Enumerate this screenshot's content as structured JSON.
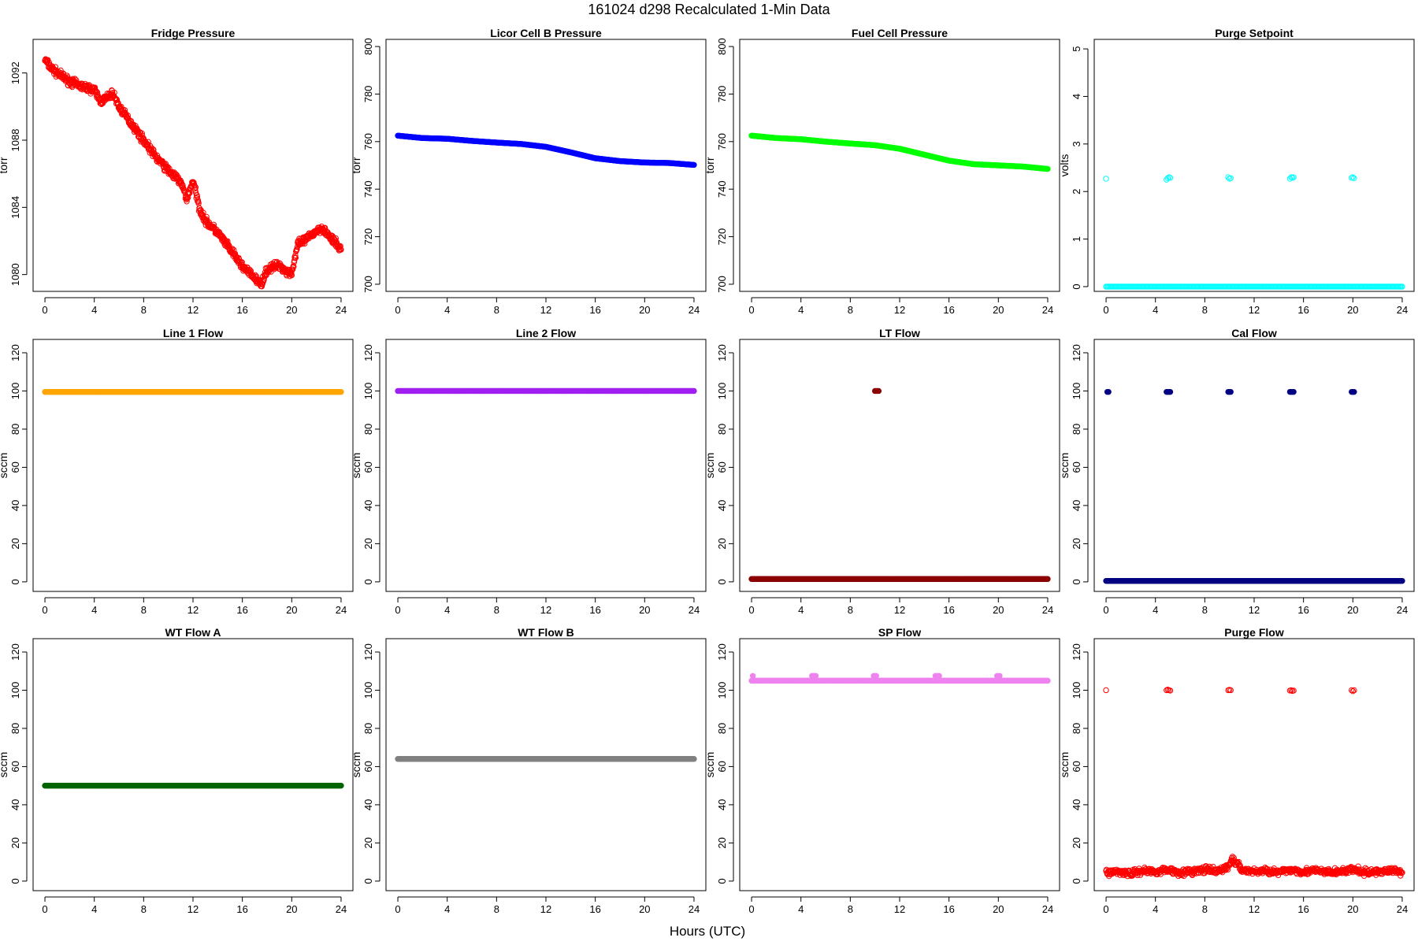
{
  "figure": {
    "title": "161024   d298   Recalculated 1-Min Data",
    "xlabel": "Hours (UTC)"
  },
  "chart_data": [
    {
      "type": "scatter",
      "title": "Fridge Pressure",
      "ylabel": "torr",
      "color": "#ff0000",
      "marker": "open",
      "xlim": [
        0,
        24
      ],
      "ylim": [
        1079,
        1094
      ],
      "xticks": [
        0,
        4,
        8,
        12,
        16,
        20,
        24
      ],
      "yticks": [
        1080,
        1084,
        1088,
        1092
      ],
      "series": [
        {
          "x": [
            0,
            0.5,
            1,
            2,
            3,
            4,
            4.5,
            5,
            5.5,
            6,
            7,
            8,
            9,
            10,
            11,
            11.5,
            12,
            12.5,
            13,
            14,
            15,
            16,
            17,
            17.5,
            18,
            19,
            19.5,
            20,
            20.5,
            21,
            22,
            22.5,
            23,
            24
          ],
          "y": [
            1092.8,
            1092.3,
            1092.0,
            1091.5,
            1091.2,
            1091.0,
            1090.3,
            1090.5,
            1090.8,
            1090.0,
            1089.0,
            1088.0,
            1087.0,
            1086.2,
            1085.5,
            1084.5,
            1085.6,
            1084.0,
            1083.2,
            1082.5,
            1081.5,
            1080.5,
            1079.8,
            1079.4,
            1080.3,
            1080.6,
            1080.2,
            1080.1,
            1081.8,
            1082.0,
            1082.6,
            1082.8,
            1082.3,
            1081.5
          ]
        }
      ]
    },
    {
      "type": "scatter",
      "title": "Licor Cell B Pressure",
      "ylabel": "torr",
      "color": "#0000ff",
      "marker": "filled",
      "xlim": [
        0,
        24
      ],
      "ylim": [
        697,
        803
      ],
      "xticks": [
        0,
        4,
        8,
        12,
        16,
        20,
        24
      ],
      "yticks": [
        700,
        720,
        740,
        760,
        780,
        800
      ],
      "series": [
        {
          "x": [
            0,
            2,
            4,
            6,
            8,
            10,
            12,
            14,
            16,
            18,
            20,
            22,
            24
          ],
          "y": [
            762.5,
            761.5,
            761.2,
            760.3,
            759.6,
            759.0,
            757.8,
            755.5,
            753.0,
            751.8,
            751.2,
            751.0,
            750.2
          ]
        }
      ]
    },
    {
      "type": "scatter",
      "title": "Fuel Cell Pressure",
      "ylabel": "torr",
      "color": "#00ff00",
      "marker": "filled",
      "xlim": [
        0,
        24
      ],
      "ylim": [
        697,
        803
      ],
      "xticks": [
        0,
        4,
        8,
        12,
        16,
        20,
        24
      ],
      "yticks": [
        700,
        720,
        740,
        760,
        780,
        800
      ],
      "series": [
        {
          "x": [
            0,
            2,
            4,
            6,
            8,
            10,
            12,
            14,
            16,
            18,
            20,
            22,
            24
          ],
          "y": [
            762.5,
            761.5,
            761.0,
            760.0,
            759.2,
            758.5,
            757.0,
            754.5,
            752.0,
            750.5,
            750.0,
            749.5,
            748.5
          ]
        }
      ]
    },
    {
      "type": "scatter",
      "title": "Purge Setpoint",
      "ylabel": "volts",
      "color": "#00ffff",
      "marker": "open",
      "xlim": [
        0,
        24
      ],
      "ylim": [
        -0.1,
        5.2
      ],
      "xticks": [
        0,
        4,
        8,
        12,
        16,
        20,
        24
      ],
      "yticks": [
        0,
        1,
        2,
        3,
        4,
        5
      ],
      "series": [
        {
          "x": [
            0,
            24
          ],
          "y": [
            0,
            0
          ],
          "kind": "band"
        },
        {
          "x": [
            0,
            4.9,
            5.0,
            5.1,
            5.2,
            9.9,
            10.0,
            10.1,
            14.9,
            15.0,
            15.1,
            15.2,
            19.9,
            20.0,
            20.1
          ],
          "y": [
            2.27,
            2.25,
            2.28,
            2.3,
            2.29,
            2.3,
            2.27,
            2.28,
            2.27,
            2.3,
            2.29,
            2.3,
            2.29,
            2.3,
            2.28
          ]
        }
      ]
    },
    {
      "type": "scatter",
      "title": "Line 1 Flow",
      "ylabel": "sccm",
      "color": "#ffa500",
      "marker": "filled",
      "xlim": [
        0,
        24
      ],
      "ylim": [
        -5,
        127
      ],
      "xticks": [
        0,
        4,
        8,
        12,
        16,
        20,
        24
      ],
      "yticks": [
        0,
        20,
        40,
        60,
        80,
        100,
        120
      ],
      "series": [
        {
          "x": [
            0,
            24
          ],
          "y": [
            99.5,
            99.5
          ],
          "kind": "band"
        }
      ]
    },
    {
      "type": "scatter",
      "title": "Line 2 Flow",
      "ylabel": "sccm",
      "color": "#a020f0",
      "marker": "filled",
      "xlim": [
        0,
        24
      ],
      "ylim": [
        -5,
        127
      ],
      "xticks": [
        0,
        4,
        8,
        12,
        16,
        20,
        24
      ],
      "yticks": [
        0,
        20,
        40,
        60,
        80,
        100,
        120
      ],
      "series": [
        {
          "x": [
            0,
            24
          ],
          "y": [
            100,
            100
          ],
          "kind": "band"
        }
      ]
    },
    {
      "type": "scatter",
      "title": "LT Flow",
      "ylabel": "sccm",
      "color": "#8b0000",
      "marker": "filled",
      "xlim": [
        0,
        24
      ],
      "ylim": [
        -5,
        127
      ],
      "xticks": [
        0,
        4,
        8,
        12,
        16,
        20,
        24
      ],
      "yticks": [
        0,
        20,
        40,
        60,
        80,
        100,
        120
      ],
      "series": [
        {
          "x": [
            0,
            24
          ],
          "y": [
            1.5,
            1.5
          ],
          "kind": "band"
        },
        {
          "x": [
            10.0,
            10.1,
            10.2,
            10.3
          ],
          "y": [
            100,
            100,
            100,
            100
          ]
        }
      ]
    },
    {
      "type": "scatter",
      "title": "Cal Flow",
      "ylabel": "sccm",
      "color": "#000080",
      "marker": "filled",
      "xlim": [
        0,
        24
      ],
      "ylim": [
        -5,
        127
      ],
      "xticks": [
        0,
        4,
        8,
        12,
        16,
        20,
        24
      ],
      "yticks": [
        0,
        20,
        40,
        60,
        80,
        100,
        120
      ],
      "series": [
        {
          "x": [
            0,
            24
          ],
          "y": [
            0.5,
            0.5
          ],
          "kind": "band"
        },
        {
          "x": [
            0.1,
            0.2,
            4.9,
            5.0,
            5.1,
            5.2,
            9.9,
            10.0,
            10.1,
            14.9,
            15.0,
            15.1,
            15.2,
            19.9,
            20.0,
            20.1
          ],
          "y": [
            99.5,
            99.5,
            99.5,
            99.5,
            99.5,
            99.5,
            99.5,
            99.5,
            99.5,
            99.5,
            99.5,
            99.5,
            99.5,
            99.5,
            99.5,
            99.5
          ]
        }
      ]
    },
    {
      "type": "scatter",
      "title": "WT Flow A",
      "ylabel": "sccm",
      "color": "#006400",
      "marker": "filled",
      "xlim": [
        0,
        24
      ],
      "ylim": [
        -5,
        127
      ],
      "xticks": [
        0,
        4,
        8,
        12,
        16,
        20,
        24
      ],
      "yticks": [
        0,
        20,
        40,
        60,
        80,
        100,
        120
      ],
      "series": [
        {
          "x": [
            0,
            24
          ],
          "y": [
            50,
            50
          ],
          "kind": "band"
        }
      ]
    },
    {
      "type": "scatter",
      "title": "WT Flow B",
      "ylabel": "sccm",
      "color": "#808080",
      "marker": "filled",
      "xlim": [
        0,
        24
      ],
      "ylim": [
        -5,
        127
      ],
      "xticks": [
        0,
        4,
        8,
        12,
        16,
        20,
        24
      ],
      "yticks": [
        0,
        20,
        40,
        60,
        80,
        100,
        120
      ],
      "series": [
        {
          "x": [
            0,
            24
          ],
          "y": [
            64,
            64
          ],
          "kind": "band"
        }
      ]
    },
    {
      "type": "scatter",
      "title": "SP Flow",
      "ylabel": "sccm",
      "color": "#ee82ee",
      "marker": "filled",
      "xlim": [
        0,
        24
      ],
      "ylim": [
        -5,
        127
      ],
      "xticks": [
        0,
        4,
        8,
        12,
        16,
        20,
        24
      ],
      "yticks": [
        0,
        20,
        40,
        60,
        80,
        100,
        120
      ],
      "series": [
        {
          "x": [
            0,
            24
          ],
          "y": [
            105,
            105
          ],
          "kind": "band"
        },
        {
          "x": [
            0.1,
            4.9,
            5.0,
            5.1,
            5.2,
            9.9,
            10.0,
            10.1,
            14.9,
            15.0,
            15.1,
            15.2,
            19.9,
            20.0,
            20.1
          ],
          "y": [
            107.5,
            107.5,
            107.5,
            107.5,
            107.5,
            107.5,
            107.5,
            107.5,
            107.5,
            107.5,
            107.5,
            107.5,
            107.5,
            107.5,
            107.5
          ]
        }
      ]
    },
    {
      "type": "scatter",
      "title": "Purge Flow",
      "ylabel": "sccm",
      "color": "#ff0000",
      "marker": "open",
      "xlim": [
        0,
        24
      ],
      "ylim": [
        -5,
        127
      ],
      "xticks": [
        0,
        4,
        8,
        12,
        16,
        20,
        24
      ],
      "yticks": [
        0,
        20,
        40,
        60,
        80,
        100,
        120
      ],
      "series": [
        {
          "x": [
            0,
            1,
            2,
            3,
            4,
            5,
            6,
            7,
            8,
            9,
            10,
            10.2,
            11,
            12,
            13,
            14,
            15,
            16,
            17,
            18,
            19,
            20,
            21,
            22,
            23,
            24
          ],
          "y": [
            4.5,
            5,
            4,
            5.5,
            5,
            6,
            4.5,
            5,
            6,
            5,
            8,
            12,
            6,
            5,
            5.5,
            4.5,
            6,
            5,
            5.5,
            4.5,
            5,
            6,
            4.5,
            5,
            5.5,
            5
          ],
          "kind": "noisy"
        },
        {
          "x": [
            0,
            4.9,
            5.0,
            5.1,
            5.2,
            9.9,
            10.0,
            10.1,
            14.9,
            15.0,
            15.1,
            15.2,
            19.9,
            20.0,
            20.1
          ],
          "y": [
            100,
            100,
            100.3,
            100,
            99.8,
            100,
            100.2,
            100,
            99.8,
            100,
            99.6,
            99.8,
            100,
            99.5,
            100
          ]
        }
      ]
    }
  ]
}
